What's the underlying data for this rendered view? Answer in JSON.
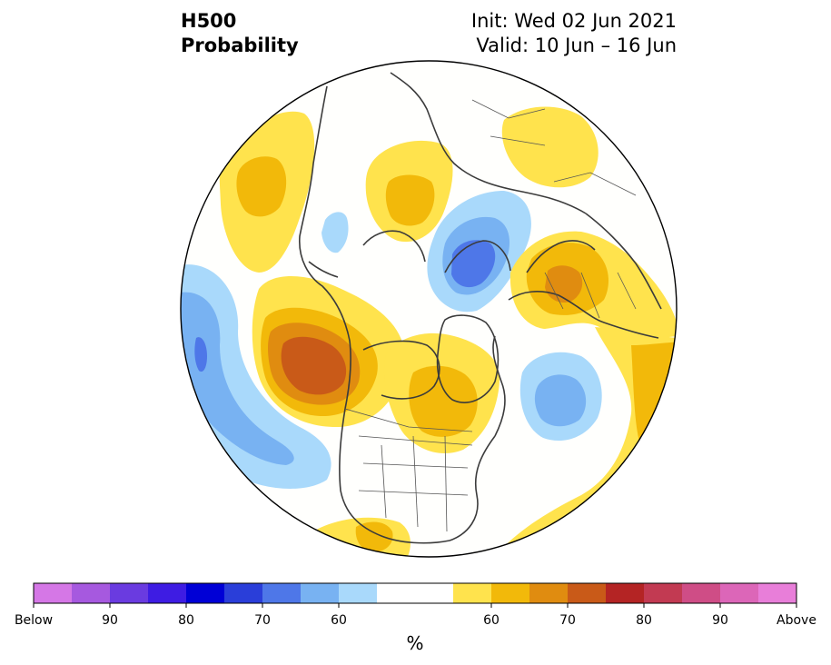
{
  "header": {
    "title_line1": "H500",
    "title_line2": "Probability",
    "init_label": "Init: Wed 02 Jun 2021",
    "valid_label": "Valid: 10 Jun – 16 Jun"
  },
  "colorbar": {
    "unit": "%",
    "tick_labels": [
      "Below",
      "90",
      "80",
      "70",
      "60",
      "60",
      "70",
      "80",
      "90",
      "Above"
    ],
    "colors": [
      "#d577e6",
      "#a659df",
      "#6a3be0",
      "#3e1ce3",
      "#0000d6",
      "#2a3ed9",
      "#4e77e8",
      "#78b2f2",
      "#a9d9fb",
      "#ffffff",
      "#ffe34d",
      "#f2b90a",
      "#e08c10",
      "#c95a18",
      "#b42424",
      "#c23a52",
      "#cf4d86",
      "#dc66b8",
      "#e87ed9"
    ]
  },
  "colors": {
    "weak_above": "#ffe34d",
    "mid_above": "#f2b90a",
    "strong_above": "#e08c10",
    "stronger_above": "#c95a18",
    "weak_below": "#a9d9fb",
    "mid_below": "#78b2f2",
    "strong_below": "#4e77e8",
    "stronger_below": "#2a3ed9",
    "land_outline": "#3b3b3b"
  }
}
